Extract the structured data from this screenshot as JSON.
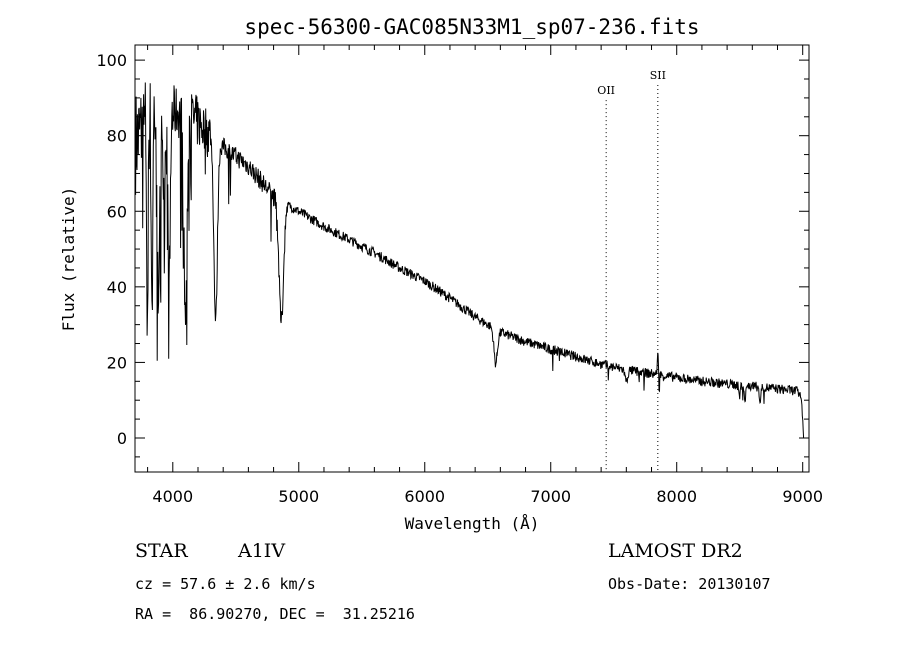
{
  "chart_data": {
    "type": "line",
    "title": "spec-56300-GAC085N33M1_sp07-236.fits",
    "xlabel": "Wavelength (Å)",
    "ylabel": "Flux (relative)",
    "xlim": [
      3700,
      9050
    ],
    "ylim": [
      -9,
      104
    ],
    "x_ticks": [
      4000,
      5000,
      6000,
      7000,
      8000,
      9000
    ],
    "y_ticks": [
      0,
      20,
      40,
      60,
      80,
      100
    ],
    "grid": false,
    "line_color": "#000000",
    "continuum": [
      [
        3700,
        78
      ],
      [
        3760,
        82
      ],
      [
        3850,
        86
      ],
      [
        3950,
        87
      ],
      [
        4050,
        86
      ],
      [
        4150,
        85
      ],
      [
        4250,
        82
      ],
      [
        4400,
        77
      ],
      [
        4600,
        72
      ],
      [
        4800,
        64
      ],
      [
        5000,
        60
      ],
      [
        5200,
        56
      ],
      [
        5400,
        52.5
      ],
      [
        5600,
        49
      ],
      [
        5800,
        45
      ],
      [
        6000,
        41.5
      ],
      [
        6200,
        37
      ],
      [
        6400,
        32
      ],
      [
        6600,
        28
      ],
      [
        6800,
        25.5
      ],
      [
        7000,
        23.5
      ],
      [
        7200,
        21.5
      ],
      [
        7400,
        19.5
      ],
      [
        7600,
        18
      ],
      [
        7800,
        17
      ],
      [
        8000,
        16
      ],
      [
        8200,
        15
      ],
      [
        8400,
        14.3
      ],
      [
        8600,
        13.7
      ],
      [
        8800,
        13
      ],
      [
        8950,
        12.5
      ],
      [
        8990,
        11
      ],
      [
        9000,
        4
      ],
      [
        9010,
        0
      ]
    ],
    "absorption_lines": [
      {
        "x": 3798,
        "depth": 55,
        "width": 5
      },
      {
        "x": 3835,
        "depth": 50,
        "width": 6
      },
      {
        "x": 3889,
        "depth": 55,
        "width": 8
      },
      {
        "x": 3933,
        "depth": 30,
        "width": 5
      },
      {
        "x": 3970,
        "depth": 55,
        "width": 9
      },
      {
        "x": 4101,
        "depth": 55,
        "width": 12
      },
      {
        "x": 4340,
        "depth": 48,
        "width": 14
      },
      {
        "x": 4861,
        "depth": 32,
        "width": 18
      },
      {
        "x": 6563,
        "depth": 9,
        "width": 14
      },
      {
        "x": 7600,
        "depth": 3,
        "width": 10
      },
      {
        "x": 8498,
        "depth": 3,
        "width": 6
      },
      {
        "x": 8542,
        "depth": 4,
        "width": 6
      },
      {
        "x": 8662,
        "depth": 4,
        "width": 6
      }
    ],
    "emission_lines": [
      {
        "x": 7850,
        "height": 5,
        "width": 5
      }
    ],
    "line_markers": [
      {
        "label": "OII",
        "x": 7440,
        "label_y": 91
      },
      {
        "label": "SII",
        "x": 7850,
        "label_y": 95
      }
    ]
  },
  "info": {
    "object_class": "STAR",
    "subclass": "A1IV",
    "velocity": "cz = 57.6 ± 2.6 km/s",
    "coords": "RA =  86.90270, DEC =  31.25216",
    "survey": "LAMOST DR2",
    "obs_date": "Obs-Date: 20130107"
  }
}
